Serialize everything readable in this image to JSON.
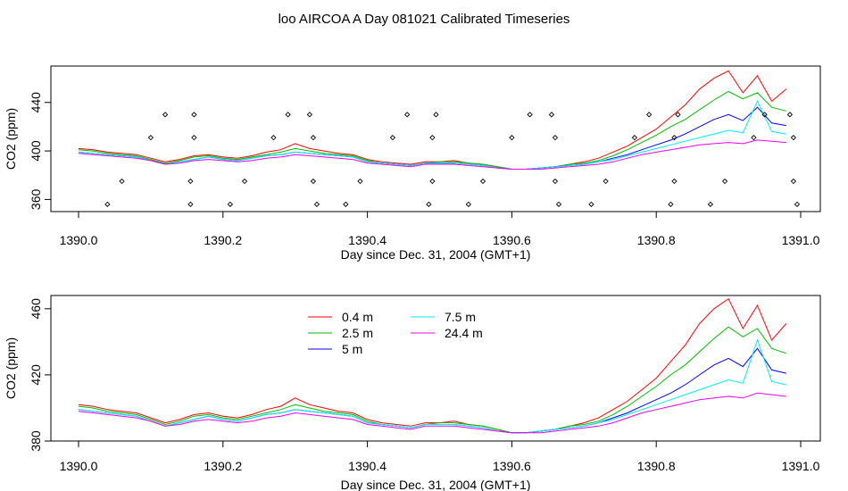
{
  "page_title": "loo AIRCOA A  Day 081021  Calibrated Timeseries",
  "colors": {
    "0.4 m": "#ff0000",
    "2.5 m": "#00bb00",
    "5 m": "#0000ff",
    "7.5 m": "#00eeee",
    "24.4 m": "#ee00ee"
  },
  "chart_data": [
    {
      "type": "line",
      "title": "",
      "xlabel": "Day since Dec. 31, 2004 (GMT+1)",
      "ylabel": "CO2 (ppm)",
      "xlim": [
        1390.0,
        1391.0
      ],
      "ylim": [
        350,
        470
      ],
      "x_ticks": [
        "1390.0",
        "1390.2",
        "1390.4",
        "1390.6",
        "1390.8",
        "1391.0"
      ],
      "y_ticks": [
        "360",
        "400",
        "440"
      ],
      "y_tick_values": [
        360,
        400,
        440
      ],
      "grid": false,
      "legend": false,
      "scatter_points": [
        [
          1390.04,
          356
        ],
        [
          1390.06,
          375
        ],
        [
          1390.1,
          411
        ],
        [
          1390.12,
          430
        ],
        [
          1390.155,
          356
        ],
        [
          1390.155,
          375
        ],
        [
          1390.16,
          411
        ],
        [
          1390.16,
          430
        ],
        [
          1390.21,
          356
        ],
        [
          1390.23,
          375
        ],
        [
          1390.27,
          411
        ],
        [
          1390.29,
          430
        ],
        [
          1390.32,
          430
        ],
        [
          1390.325,
          411
        ],
        [
          1390.325,
          375
        ],
        [
          1390.33,
          356
        ],
        [
          1390.37,
          356
        ],
        [
          1390.39,
          375
        ],
        [
          1390.435,
          411
        ],
        [
          1390.455,
          430
        ],
        [
          1390.485,
          356
        ],
        [
          1390.49,
          375
        ],
        [
          1390.49,
          411
        ],
        [
          1390.495,
          430
        ],
        [
          1390.54,
          356
        ],
        [
          1390.56,
          375
        ],
        [
          1390.6,
          411
        ],
        [
          1390.625,
          430
        ],
        [
          1390.655,
          430
        ],
        [
          1390.66,
          411
        ],
        [
          1390.66,
          375
        ],
        [
          1390.665,
          356
        ],
        [
          1390.71,
          356
        ],
        [
          1390.73,
          375
        ],
        [
          1390.77,
          411
        ],
        [
          1390.79,
          430
        ],
        [
          1390.82,
          356
        ],
        [
          1390.825,
          375
        ],
        [
          1390.825,
          411
        ],
        [
          1390.83,
          430
        ],
        [
          1390.875,
          356
        ],
        [
          1390.895,
          375
        ],
        [
          1390.935,
          411
        ],
        [
          1390.95,
          430
        ],
        [
          1390.985,
          430
        ],
        [
          1390.99,
          411
        ],
        [
          1390.99,
          375
        ],
        [
          1390.995,
          356
        ]
      ],
      "x": [
        1390.0,
        1390.02,
        1390.04,
        1390.06,
        1390.08,
        1390.1,
        1390.12,
        1390.14,
        1390.16,
        1390.18,
        1390.2,
        1390.22,
        1390.24,
        1390.26,
        1390.28,
        1390.3,
        1390.32,
        1390.34,
        1390.36,
        1390.38,
        1390.4,
        1390.42,
        1390.44,
        1390.46,
        1390.48,
        1390.5,
        1390.52,
        1390.54,
        1390.56,
        1390.58,
        1390.6,
        1390.62,
        1390.64,
        1390.66,
        1390.68,
        1390.7,
        1390.72,
        1390.74,
        1390.76,
        1390.78,
        1390.8,
        1390.82,
        1390.84,
        1390.86,
        1390.88,
        1390.9,
        1390.92,
        1390.94,
        1390.96,
        1390.98
      ],
      "series": [
        {
          "name": "0.4 m",
          "values": [
            402,
            401,
            399,
            398,
            397,
            394,
            391,
            393,
            396,
            397,
            395,
            394,
            396,
            399,
            401,
            406,
            402,
            400,
            398,
            397,
            393,
            391,
            390,
            389,
            391,
            391,
            392,
            390,
            389,
            387,
            385,
            385,
            386,
            387,
            389,
            391,
            394,
            399,
            404,
            411,
            418,
            428,
            438,
            451,
            460,
            466,
            448,
            462,
            441,
            451
          ]
        },
        {
          "name": "2.5 m",
          "values": [
            401,
            400,
            398,
            397,
            396,
            393,
            390,
            392,
            395,
            396,
            394,
            393,
            395,
            397,
            399,
            402,
            400,
            398,
            397,
            396,
            392,
            390,
            389,
            388,
            390,
            391,
            391,
            390,
            389,
            387,
            385,
            385,
            386,
            387,
            389,
            390,
            392,
            396,
            401,
            407,
            413,
            420,
            426,
            434,
            442,
            449,
            443,
            448,
            436,
            433
          ]
        },
        {
          "name": "5 m",
          "values": [
            399,
            398,
            397,
            396,
            395,
            392,
            389,
            391,
            393,
            395,
            393,
            392,
            394,
            396,
            397,
            399,
            398,
            397,
            396,
            395,
            391,
            390,
            389,
            388,
            390,
            390,
            390,
            389,
            388,
            386,
            385,
            385,
            386,
            387,
            388,
            389,
            391,
            394,
            397,
            401,
            405,
            409,
            414,
            420,
            426,
            430,
            425,
            436,
            423,
            421
          ]
        },
        {
          "name": "7.5 m",
          "values": [
            399,
            398,
            397,
            396,
            395,
            392,
            389,
            391,
            393,
            395,
            393,
            392,
            394,
            396,
            397,
            399,
            398,
            397,
            396,
            395,
            391,
            390,
            389,
            388,
            390,
            390,
            390,
            389,
            388,
            386,
            385,
            385,
            386,
            387,
            388,
            389,
            391,
            393,
            396,
            399,
            402,
            405,
            408,
            411,
            414,
            417,
            415,
            441,
            416,
            414
          ]
        },
        {
          "name": "24.4 m",
          "values": [
            398,
            397,
            396,
            395,
            394,
            392,
            389,
            390,
            392,
            393,
            392,
            391,
            392,
            394,
            395,
            397,
            396,
            395,
            394,
            393,
            390,
            389,
            388,
            387,
            389,
            389,
            389,
            388,
            387,
            386,
            385,
            385,
            385,
            386,
            387,
            388,
            389,
            391,
            394,
            397,
            399,
            401,
            403,
            405,
            406,
            407,
            406,
            409,
            408,
            407
          ]
        }
      ]
    },
    {
      "type": "line",
      "title": "",
      "xlabel": "Day since Dec. 31, 2004 (GMT+1)",
      "ylabel": "CO2 (ppm)",
      "xlim": [
        1390.0,
        1391.0
      ],
      "ylim": [
        380,
        468
      ],
      "x_ticks": [
        "1390.0",
        "1390.2",
        "1390.4",
        "1390.6",
        "1390.8",
        "1391.0"
      ],
      "y_ticks": [
        "380",
        "420",
        "460"
      ],
      "y_tick_values": [
        380,
        420,
        460
      ],
      "grid": false,
      "legend": true,
      "legend_position": "top-center",
      "legend_entries": [
        {
          "label": "0.4 m",
          "color": "#ff0000"
        },
        {
          "label": "2.5 m",
          "color": "#00bb00"
        },
        {
          "label": "5 m",
          "color": "#0000ff"
        },
        {
          "label": "7.5 m",
          "color": "#00eeee"
        },
        {
          "label": "24.4 m",
          "color": "#ee00ee"
        }
      ],
      "x": [
        1390.0,
        1390.02,
        1390.04,
        1390.06,
        1390.08,
        1390.1,
        1390.12,
        1390.14,
        1390.16,
        1390.18,
        1390.2,
        1390.22,
        1390.24,
        1390.26,
        1390.28,
        1390.3,
        1390.32,
        1390.34,
        1390.36,
        1390.38,
        1390.4,
        1390.42,
        1390.44,
        1390.46,
        1390.48,
        1390.5,
        1390.52,
        1390.54,
        1390.56,
        1390.58,
        1390.6,
        1390.62,
        1390.64,
        1390.66,
        1390.68,
        1390.7,
        1390.72,
        1390.74,
        1390.76,
        1390.78,
        1390.8,
        1390.82,
        1390.84,
        1390.86,
        1390.88,
        1390.9,
        1390.92,
        1390.94,
        1390.96,
        1390.98
      ],
      "series": [
        {
          "name": "0.4 m",
          "values": [
            402,
            401,
            399,
            398,
            397,
            394,
            391,
            393,
            396,
            397,
            395,
            394,
            396,
            399,
            401,
            406,
            402,
            400,
            398,
            397,
            393,
            391,
            390,
            389,
            391,
            391,
            392,
            390,
            389,
            387,
            385,
            385,
            386,
            387,
            389,
            391,
            394,
            399,
            404,
            411,
            418,
            428,
            438,
            451,
            460,
            466,
            448,
            462,
            441,
            451
          ]
        },
        {
          "name": "2.5 m",
          "values": [
            401,
            400,
            398,
            397,
            396,
            393,
            390,
            392,
            395,
            396,
            394,
            393,
            395,
            397,
            399,
            402,
            400,
            398,
            397,
            396,
            392,
            390,
            389,
            388,
            390,
            391,
            391,
            390,
            389,
            387,
            385,
            385,
            386,
            387,
            389,
            390,
            392,
            396,
            401,
            407,
            413,
            420,
            426,
            434,
            442,
            449,
            443,
            448,
            436,
            433
          ]
        },
        {
          "name": "5 m",
          "values": [
            399,
            398,
            397,
            396,
            395,
            392,
            389,
            391,
            393,
            395,
            393,
            392,
            394,
            396,
            397,
            399,
            398,
            397,
            396,
            395,
            391,
            390,
            389,
            388,
            390,
            390,
            390,
            389,
            388,
            386,
            385,
            385,
            386,
            387,
            388,
            389,
            391,
            394,
            397,
            401,
            405,
            409,
            414,
            420,
            426,
            430,
            425,
            436,
            423,
            421
          ]
        },
        {
          "name": "7.5 m",
          "values": [
            399,
            398,
            397,
            396,
            395,
            392,
            389,
            391,
            393,
            395,
            393,
            392,
            394,
            396,
            397,
            399,
            398,
            397,
            396,
            395,
            391,
            390,
            389,
            388,
            390,
            390,
            390,
            389,
            388,
            386,
            385,
            385,
            386,
            387,
            388,
            389,
            391,
            393,
            396,
            399,
            402,
            405,
            408,
            411,
            414,
            417,
            415,
            441,
            416,
            414
          ]
        },
        {
          "name": "24.4 m",
          "values": [
            398,
            397,
            396,
            395,
            394,
            392,
            389,
            390,
            392,
            393,
            392,
            391,
            392,
            394,
            395,
            397,
            396,
            395,
            394,
            393,
            390,
            389,
            388,
            387,
            389,
            389,
            389,
            388,
            387,
            386,
            385,
            385,
            385,
            386,
            387,
            388,
            389,
            391,
            394,
            397,
            399,
            401,
            403,
            405,
            406,
            407,
            406,
            409,
            408,
            407
          ]
        }
      ]
    }
  ]
}
